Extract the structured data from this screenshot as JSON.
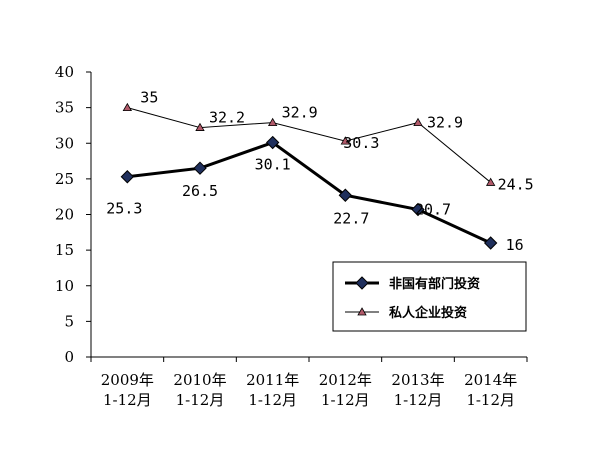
{
  "chart_data": {
    "type": "line",
    "title": "",
    "xlabel": "",
    "ylabel": "",
    "ylim": [
      0,
      40
    ],
    "yticks": [
      "0",
      "5",
      "10",
      "15",
      "20",
      "25",
      "30",
      "35",
      "40"
    ],
    "categories": [
      [
        "2009年",
        "1-12月"
      ],
      [
        "2010年",
        "1-12月"
      ],
      [
        "2011年",
        "1-12月"
      ],
      [
        "2012年",
        "1-12月"
      ],
      [
        "2013年",
        "1-12月"
      ],
      [
        "2014年",
        "1-12月"
      ]
    ],
    "grid": false,
    "legend_position": "bottom-right",
    "series": [
      {
        "name": "非国有部门投资",
        "values": [
          25.3,
          26.5,
          30.1,
          22.7,
          20.7,
          16
        ],
        "labels": [
          "25.3",
          "26.5",
          "30.1",
          "22.7",
          "20.7",
          "16"
        ],
        "color": "#000000",
        "marker": "diamond",
        "marker_fill": "#1f2f5c"
      },
      {
        "name": "私人企业投资",
        "values": [
          35,
          32.2,
          32.9,
          30.3,
          32.9,
          24.5
        ],
        "labels": [
          "35",
          "32.2",
          "32.9",
          "30.3",
          "32.9",
          "24.5"
        ],
        "color": "#000000",
        "marker": "triangle",
        "marker_fill": "#b25a6a"
      }
    ]
  }
}
